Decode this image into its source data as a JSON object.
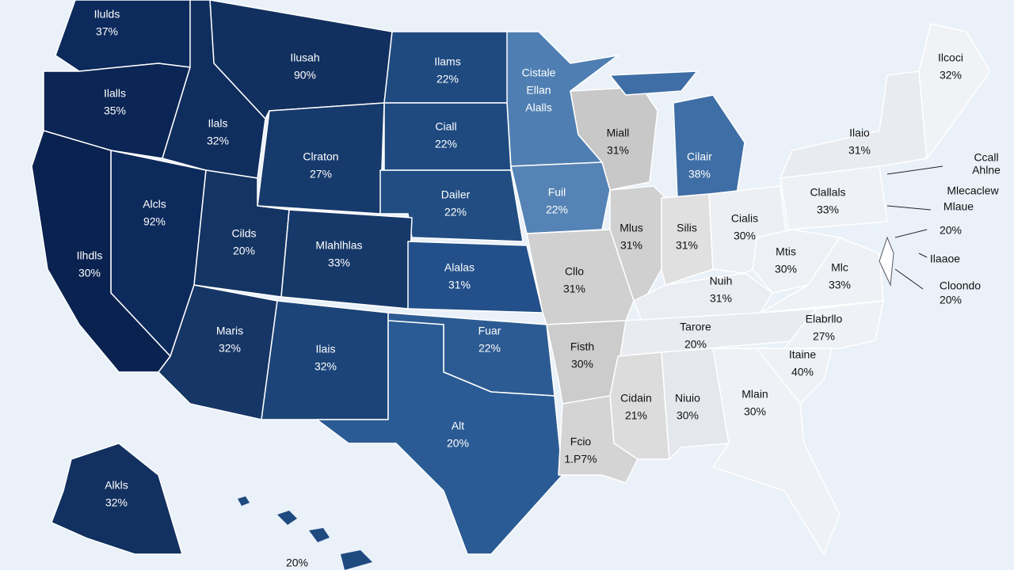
{
  "map": {
    "regions": [
      {
        "lines": [
          "Ilulds",
          "37%"
        ],
        "color": "#0d2a5c"
      },
      {
        "lines": [
          "Ilusah",
          "90%"
        ],
        "color": "#12305f"
      },
      {
        "lines": [
          "Ilams",
          "22%"
        ],
        "color": "#1f4a80"
      },
      {
        "lines": [
          "Cistale",
          "Ellan",
          "Alalls"
        ],
        "color": "#4f7fb2"
      },
      {
        "lines": [
          "Ilalls",
          "35%"
        ],
        "color": "#0b2554"
      },
      {
        "lines": [
          "Ilals",
          "32%"
        ],
        "color": "#0f2d5d"
      },
      {
        "lines": [
          "Ciall",
          "22%"
        ],
        "color": "#1e4a80"
      },
      {
        "lines": [
          "Clraton",
          "27%"
        ],
        "color": "#173a6c"
      },
      {
        "lines": [
          "Miall",
          "31%"
        ],
        "color": "#c8c8c8"
      },
      {
        "lines": [
          "Cilair",
          "38%"
        ],
        "color": "#3f6ea6"
      },
      {
        "lines": [
          "Ilaio",
          "31%"
        ],
        "color": "#e8ecf0"
      },
      {
        "lines": [
          "Ilcoci",
          "32%"
        ],
        "color": "#f0f2f5"
      },
      {
        "lines": [
          "Dailer",
          "22%"
        ],
        "color": "#214d82"
      },
      {
        "lines": [
          "Fuil",
          "22%"
        ],
        "color": "#5683b5"
      },
      {
        "lines": [
          "Alcls",
          "92%"
        ],
        "color": "#0d2a5c"
      },
      {
        "lines": [
          "Cilds",
          "20%"
        ],
        "color": "#143463"
      },
      {
        "lines": [
          "Mlahlhlas",
          "33%"
        ],
        "color": "#17396a"
      },
      {
        "lines": [
          "Ilhdls",
          "30%"
        ],
        "color": "#0a2250"
      },
      {
        "lines": [
          "Alalas",
          "31%"
        ],
        "color": "#23508a"
      },
      {
        "lines": [
          "Mlus",
          "31%"
        ],
        "color": "#d0d0d0"
      },
      {
        "lines": [
          "Silis",
          "31%"
        ],
        "color": "#e0e0e0"
      },
      {
        "lines": [
          "Cialis",
          "30%"
        ],
        "color": "#eceff3"
      },
      {
        "lines": [
          "Clallals",
          "33%"
        ],
        "color": "#eef1f5"
      },
      {
        "lines": [
          "Cllo",
          "31%"
        ],
        "color": "#d0d0d0"
      },
      {
        "lines": [
          "Mtis",
          "30%"
        ],
        "color": "#edf0f4"
      },
      {
        "lines": [
          "Mlc",
          "33%"
        ],
        "color": "#eef1f5"
      },
      {
        "lines": [
          "Nuih",
          "31%"
        ],
        "color": "#eaedf2"
      },
      {
        "lines": [
          "Maris",
          "32%"
        ],
        "color": "#163666"
      },
      {
        "lines": [
          "Ilais",
          "32%"
        ],
        "color": "#1c4478"
      },
      {
        "lines": [
          "Fuar",
          "22%"
        ],
        "color": "#2c5b93"
      },
      {
        "lines": [
          "Tarore",
          "20%"
        ],
        "color": "#e8ebf0"
      },
      {
        "lines": [
          "Elabrllo",
          "27%"
        ],
        "color": "#eef1f5"
      },
      {
        "lines": [
          "Fisth",
          "30%"
        ],
        "color": "#cccccc"
      },
      {
        "lines": [
          "Itaine",
          "40%"
        ],
        "color": "#eef1f5"
      },
      {
        "lines": [
          "Alt",
          "20%"
        ],
        "color": "#2b5b94"
      },
      {
        "lines": [
          "Cidain",
          "21%"
        ],
        "color": "#dcdcdc"
      },
      {
        "lines": [
          "Niuio",
          "30%"
        ],
        "color": "#e4e7ec"
      },
      {
        "lines": [
          "Mlain",
          "30%"
        ],
        "color": "#eef1f5"
      },
      {
        "lines": [
          "Fcio",
          "1.P7%"
        ],
        "color": "#d4d4d4"
      },
      {
        "lines": [
          "Alkls",
          "32%"
        ],
        "color": "#123060"
      }
    ],
    "annotations": [
      "Ccall",
      "Ahlne",
      "Mlecaclew",
      "Mlaue",
      "20%",
      "Ilaaoe",
      "Cloondo",
      "20%",
      "20%"
    ]
  }
}
